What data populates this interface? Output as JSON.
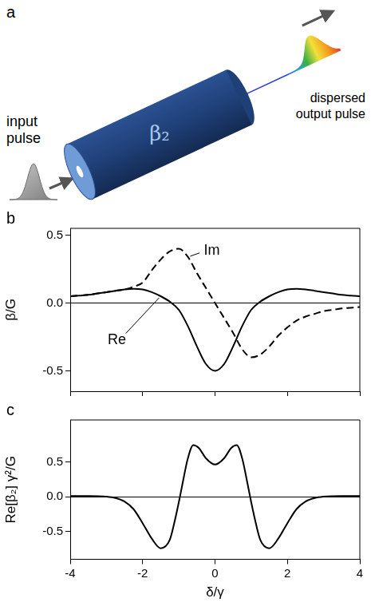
{
  "diagram": {
    "panel": "a",
    "labels": {
      "input": "input pulse",
      "fiber": "β₂",
      "output": "dispersed output pulse"
    }
  },
  "chart_data": [
    {
      "type": "line",
      "panel": "b",
      "ylabel": "β/G",
      "x": [
        -4,
        -3.75,
        -3.5,
        -3.25,
        -3,
        -2.75,
        -2.5,
        -2.25,
        -2,
        -1.75,
        -1.5,
        -1.25,
        -1,
        -0.75,
        -0.5,
        -0.25,
        0,
        0.25,
        0.5,
        0.75,
        1,
        1.25,
        1.5,
        1.75,
        2,
        2.25,
        2.5,
        2.75,
        3,
        3.25,
        3.5,
        3.75,
        4
      ],
      "series": [
        {
          "name": "Re",
          "color": "#000000",
          "line_style": "solid",
          "values": [
            0.05,
            0.055,
            0.06,
            0.07,
            0.08,
            0.09,
            0.1,
            0.105,
            0.1,
            0.08,
            0.05,
            0.01,
            -0.05,
            -0.17,
            -0.32,
            -0.45,
            -0.5,
            -0.45,
            -0.32,
            -0.17,
            -0.05,
            0.01,
            0.05,
            0.08,
            0.1,
            0.105,
            0.1,
            0.09,
            0.08,
            0.07,
            0.06,
            0.055,
            0.05
          ]
        },
        {
          "name": "Im",
          "color": "#000000",
          "line_style": "dashed",
          "values": [
            0.05,
            0.055,
            0.06,
            0.07,
            0.08,
            0.09,
            0.1,
            0.12,
            0.15,
            0.24,
            0.32,
            0.38,
            0.4,
            0.34,
            0.22,
            0.11,
            0,
            -0.11,
            -0.22,
            -0.34,
            -0.4,
            -0.38,
            -0.32,
            -0.24,
            -0.18,
            -0.13,
            -0.1,
            -0.08,
            -0.06,
            -0.05,
            -0.04,
            -0.035,
            -0.03
          ]
        }
      ],
      "xlim": [
        -4,
        4
      ],
      "xticks": [
        -4,
        -2,
        0,
        2,
        4
      ],
      "ylim": [
        -0.65,
        0.55
      ],
      "yticks": [
        -0.5,
        {
          "value": 0,
          "label": "0.0"
        },
        0.5
      ],
      "grid": false,
      "tick_labels": "y"
    },
    {
      "type": "line",
      "panel": "c",
      "ylabel": "Re[β₂] γ²/G",
      "xlabel": "δ/γ",
      "x": [
        -4,
        -3.5,
        -3,
        -2.75,
        -2.5,
        -2.25,
        -2,
        -1.75,
        -1.5,
        -1.25,
        -1.1,
        -1,
        -0.9,
        -0.75,
        -0.6,
        -0.45,
        -0.25,
        0,
        0.25,
        0.45,
        0.6,
        0.75,
        0.9,
        1,
        1.1,
        1.25,
        1.5,
        1.75,
        2,
        2.25,
        2.5,
        2.75,
        3,
        3.5,
        4
      ],
      "values": [
        0.01,
        0.01,
        0,
        -0.02,
        -0.07,
        -0.18,
        -0.38,
        -0.6,
        -0.74,
        -0.62,
        -0.32,
        -0.08,
        0.18,
        0.55,
        0.74,
        0.7,
        0.55,
        0.46,
        0.55,
        0.7,
        0.74,
        0.55,
        0.18,
        -0.08,
        -0.32,
        -0.62,
        -0.74,
        -0.6,
        -0.38,
        -0.18,
        -0.07,
        -0.02,
        0,
        0.01,
        0.01
      ],
      "color": "#000000",
      "line_style": "solid",
      "xlim": [
        -4,
        4
      ],
      "xticks": [
        -4,
        -2,
        0,
        2,
        4
      ],
      "ylim": [
        -0.9,
        1.1
      ],
      "yticks": [
        -0.5,
        {
          "value": 0,
          "label": "0.0"
        },
        0.5
      ],
      "grid": false
    }
  ]
}
